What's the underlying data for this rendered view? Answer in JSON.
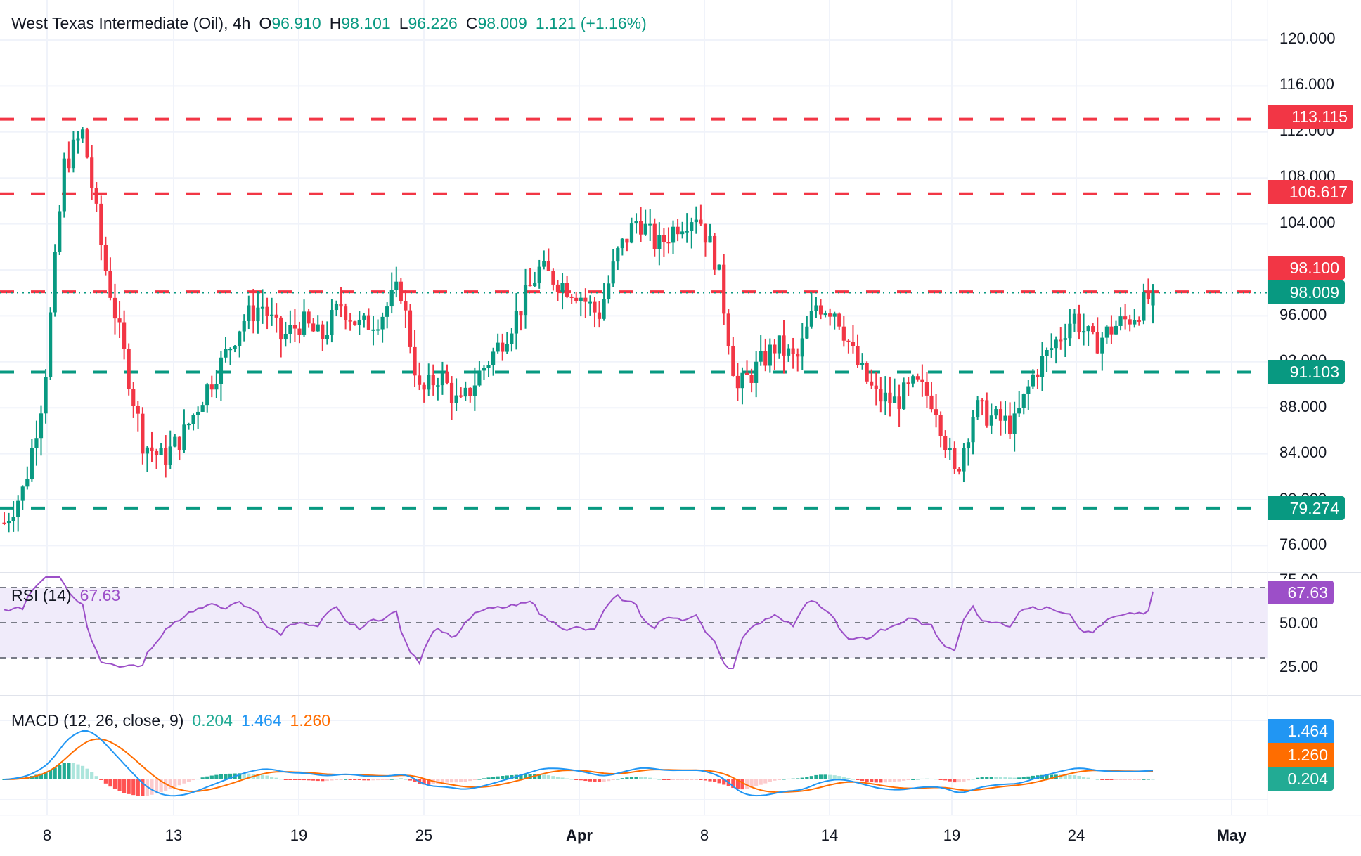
{
  "header": {
    "symbol": "West Texas Intermediate (Oil), 4h",
    "o_label": "O",
    "o_value": "96.910",
    "h_label": "H",
    "h_value": "98.101",
    "l_label": "L",
    "l_value": "96.226",
    "c_label": "C",
    "c_value": "98.009",
    "change": "1.121 (+1.16%)"
  },
  "price_axis": {
    "ticks": [
      "120.000",
      "116.000",
      "112.000",
      "108.000",
      "104.000",
      "96.000",
      "92.000",
      "88.000",
      "84.000",
      "80.000",
      "76.000"
    ],
    "tags": [
      {
        "value": "113.115",
        "color": "#f23645"
      },
      {
        "value": "106.617",
        "color": "#f23645"
      },
      {
        "value": "98.100",
        "color": "#f23645"
      },
      {
        "value": "98.009",
        "color": "#089981"
      },
      {
        "value": "91.103",
        "color": "#089981"
      },
      {
        "value": "79.274",
        "color": "#089981"
      }
    ]
  },
  "rsi": {
    "label": "RSI (14)",
    "value": "67.63",
    "ticks": [
      "75.00",
      "50.00",
      "25.00"
    ],
    "tag": "67.63",
    "color": "#9c4fc8"
  },
  "macd": {
    "label": "MACD (12, 26, close, 9)",
    "hist": "0.204",
    "macd": "1.464",
    "signal": "1.260",
    "tags": [
      {
        "value": "1.464",
        "color": "#2196f3"
      },
      {
        "value": "1.260",
        "color": "#ff6d00"
      },
      {
        "value": "0.204",
        "color": "#22ab94"
      }
    ]
  },
  "x_axis": {
    "labels": [
      "8",
      "13",
      "19",
      "25",
      "Apr",
      "8",
      "14",
      "19",
      "24",
      "May"
    ]
  },
  "chart_data": {
    "type": "candlestick",
    "title": "West Texas Intermediate (Oil), 4h",
    "last_bar": {
      "open": 96.91,
      "high": 98.101,
      "low": 96.226,
      "close": 98.009,
      "change": 1.121,
      "change_pct": 1.16
    },
    "ylim": [
      75,
      121
    ],
    "x_tick_labels": [
      "8",
      "13",
      "19",
      "25",
      "Apr",
      "8",
      "14",
      "19",
      "24",
      "May"
    ],
    "horizontal_levels": [
      {
        "price": 113.115,
        "color": "#f23645",
        "style": "dashed",
        "kind": "resistance"
      },
      {
        "price": 106.617,
        "color": "#f23645",
        "style": "dashed",
        "kind": "resistance"
      },
      {
        "price": 98.1,
        "color": "#f23645",
        "style": "dashed",
        "kind": "resistance"
      },
      {
        "price": 98.009,
        "color": "#089981",
        "style": "dotted",
        "kind": "last-price"
      },
      {
        "price": 91.103,
        "color": "#089981",
        "style": "dashed",
        "kind": "support"
      },
      {
        "price": 79.274,
        "color": "#089981",
        "style": "dashed",
        "kind": "support"
      }
    ],
    "approx_close_path": [
      [
        "Mar 7",
        78.0
      ],
      [
        "Mar 7",
        81.0
      ],
      [
        "Mar 8",
        89.5
      ],
      [
        "Mar 8",
        109.0
      ],
      [
        "Mar 8",
        112.0
      ],
      [
        "Mar 9",
        101.0
      ],
      [
        "Mar 9",
        93.0
      ],
      [
        "Mar 10",
        85.0
      ],
      [
        "Mar 11",
        83.5
      ],
      [
        "Mar 11",
        85.5
      ],
      [
        "Mar 12",
        89.0
      ],
      [
        "Mar 13",
        92.0
      ],
      [
        "Mar 14",
        95.5
      ],
      [
        "Mar 15",
        97.0
      ],
      [
        "Mar 16",
        94.0
      ],
      [
        "Mar 17",
        95.5
      ],
      [
        "Mar 18",
        94.0
      ],
      [
        "Mar 19",
        97.0
      ],
      [
        "Mar 20",
        95.0
      ],
      [
        "Mar 21",
        96.0
      ],
      [
        "Mar 22",
        98.5
      ],
      [
        "Mar 23",
        89.0
      ],
      [
        "Mar 24",
        91.0
      ],
      [
        "Mar 25",
        88.0
      ],
      [
        "Mar 26",
        91.0
      ],
      [
        "Mar 27",
        93.5
      ],
      [
        "Mar 28",
        96.5
      ],
      [
        "Mar 29",
        100.0
      ],
      [
        "Mar 30",
        99.0
      ],
      [
        "Mar 31",
        98.0
      ],
      [
        "Apr 1",
        96.0
      ],
      [
        "Apr 2",
        101.5
      ],
      [
        "Apr 3",
        104.5
      ],
      [
        "Apr 4",
        102.0
      ],
      [
        "Apr 5",
        104.0
      ],
      [
        "Apr 6",
        105.0
      ],
      [
        "Apr 7",
        100.5
      ],
      [
        "Apr 8",
        89.5
      ],
      [
        "Apr 9",
        91.5
      ],
      [
        "Apr 10",
        93.5
      ],
      [
        "Apr 11",
        92.0
      ],
      [
        "Apr 12",
        97.0
      ],
      [
        "Apr 13",
        96.5
      ],
      [
        "Apr 14",
        92.0
      ],
      [
        "Apr 15",
        89.0
      ],
      [
        "Apr 16",
        88.5
      ],
      [
        "Apr 17",
        90.0
      ],
      [
        "Apr 18",
        88.5
      ],
      [
        "Apr 18",
        82.0
      ],
      [
        "Apr 19",
        88.0
      ],
      [
        "Apr 20",
        87.0
      ],
      [
        "Apr 21",
        86.5
      ],
      [
        "Apr 22",
        91.0
      ],
      [
        "Apr 23",
        93.5
      ],
      [
        "Apr 24",
        96.0
      ],
      [
        "Apr 25",
        93.5
      ],
      [
        "Apr 26",
        95.0
      ],
      [
        "Apr 27",
        96.0
      ],
      [
        "Apr 28",
        98.0
      ]
    ],
    "indicators": {
      "rsi": {
        "period": 14,
        "last": 67.63,
        "bands": [
          70,
          50,
          30
        ],
        "ylim": [
          20,
          78
        ]
      },
      "macd": {
        "fast": 12,
        "slow": 26,
        "source": "close",
        "signal": 9,
        "histogram": 0.204,
        "macd": 1.464,
        "signal_value": 1.26
      }
    }
  },
  "colors": {
    "up": "#089981",
    "down": "#f23645",
    "rsi": "#9c4fc8",
    "rsi_band": "#f0ebfa",
    "macd_line": "#2196f3",
    "signal_line": "#ff6d00",
    "hist_up_strong": "#22ab94",
    "hist_up_weak": "#ace5dc",
    "hist_down_strong": "#ff5252",
    "hist_down_weak": "#fccbcd",
    "grid": "#f0f3fa"
  }
}
